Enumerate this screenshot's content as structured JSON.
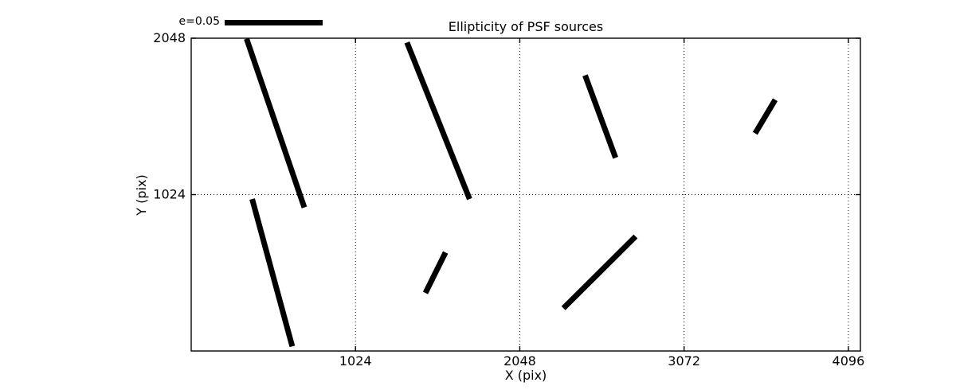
{
  "figure": {
    "background": "#ffffff",
    "foreground": "#000000"
  },
  "chart_data": {
    "type": "line",
    "subtype": "ellipticity-whisker-field",
    "title": "Ellipticity of PSF sources",
    "xlabel": "X (pix)",
    "ylabel": "Y (pix)",
    "xlim": [
      0,
      4171
    ],
    "ylim": [
      0,
      2048
    ],
    "xticks": [
      1024,
      2048,
      3072,
      4096
    ],
    "xtick_labels": [
      "1024",
      "2048",
      "3072",
      "4096"
    ],
    "yticks": [
      1024,
      2048
    ],
    "ytick_labels": [
      "1024",
      "2048"
    ],
    "grid": "dotted",
    "legend": {
      "label": "e=0.05",
      "position": "top-left-above-axes"
    },
    "segments": [
      {
        "x1": 345,
        "y1": 2045,
        "x2": 705,
        "y2": 940
      },
      {
        "x1": 1345,
        "y1": 2020,
        "x2": 1735,
        "y2": 995
      },
      {
        "x1": 2455,
        "y1": 1805,
        "x2": 2645,
        "y2": 1265
      },
      {
        "x1": 3515,
        "y1": 1425,
        "x2": 3640,
        "y2": 1645
      },
      {
        "x1": 380,
        "y1": 995,
        "x2": 630,
        "y2": 30
      },
      {
        "x1": 1460,
        "y1": 380,
        "x2": 1585,
        "y2": 645
      },
      {
        "x1": 2320,
        "y1": 280,
        "x2": 2770,
        "y2": 750
      }
    ]
  }
}
